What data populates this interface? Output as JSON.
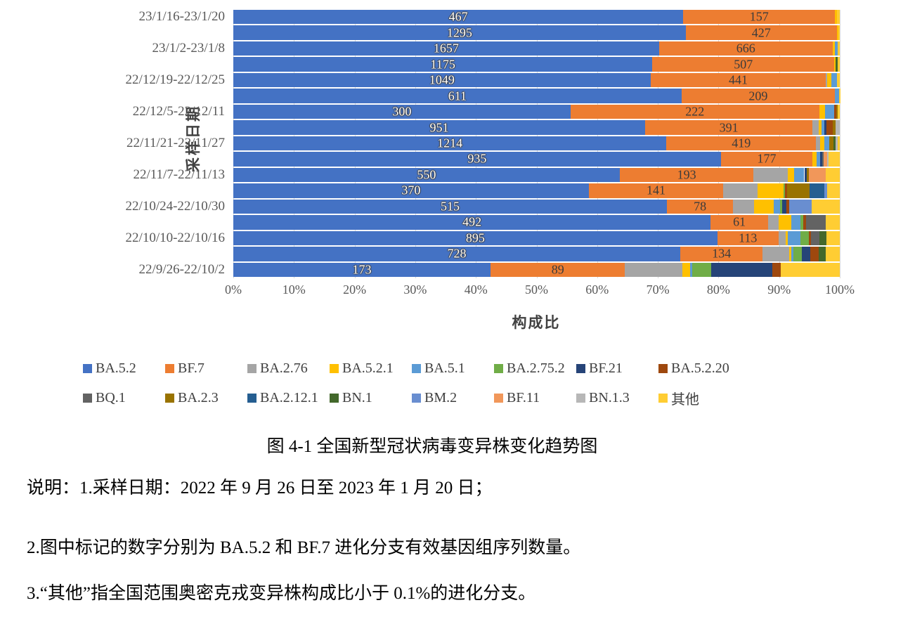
{
  "colors": {
    "BA.5.2": "#4472C4",
    "BF.7": "#ED7D31",
    "BA.2.76": "#A5A5A5",
    "BA.5.2.1": "#FFC000",
    "BA.5.1": "#5B9BD5",
    "BA.2.75.2": "#70AD47",
    "BF.21": "#264478",
    "BA.5.2.20": "#9E480E",
    "BQ.1": "#636363",
    "BA.2.3": "#997300",
    "BA.2.12.1": "#255E91",
    "BN.1": "#43682B",
    "BM.2": "#698ED0",
    "BF.11": "#F1975A",
    "BN.1.3": "#B7B7B7",
    "其他": "#FFCD33"
  },
  "chart_data": {
    "type": "bar",
    "stacked": true,
    "orientation": "horizontal",
    "xlabel": "构成比",
    "ylabel": "采样日期",
    "xlim": [
      0,
      100
    ],
    "grid": true,
    "x_ticks": [
      "0%",
      "10%",
      "20%",
      "30%",
      "40%",
      "50%",
      "60%",
      "70%",
      "80%",
      "90%",
      "100%"
    ],
    "series_names": [
      "BA.5.2",
      "BF.7",
      "BA.2.76",
      "BA.5.2.1",
      "BA.5.1",
      "BA.2.75.2",
      "BF.21",
      "BA.5.2.20",
      "BQ.1",
      "BA.2.3",
      "BA.2.12.1",
      "BN.1",
      "BM.2",
      "BF.11",
      "BN.1.3",
      "其他"
    ],
    "value_labels_note": "numbers shown = BA.5.2 and BF.7 sequence counts",
    "rows": [
      {
        "label": "23/1/16-23/1/20",
        "ba52": "467",
        "bf7": "157",
        "segments": [
          [
            "BA.5.2",
            74.2
          ],
          [
            "BF.7",
            25.0
          ],
          [
            "BA.5.2.1",
            0.35
          ],
          [
            "其他",
            0.45
          ]
        ]
      },
      {
        "label": "",
        "ba52": "1295",
        "bf7": "427",
        "segments": [
          [
            "BA.5.2",
            74.6
          ],
          [
            "BF.7",
            24.9
          ],
          [
            "BA.5.2.1",
            0.25
          ],
          [
            "其他",
            0.25
          ]
        ]
      },
      {
        "label": "23/1/2-23/1/8",
        "ba52": "1657",
        "bf7": "666",
        "segments": [
          [
            "BA.5.2",
            70.2
          ],
          [
            "BF.7",
            28.6
          ],
          [
            "BA.5.2.1",
            0.35
          ],
          [
            "BA.5.1",
            0.5
          ],
          [
            "其他",
            0.35
          ]
        ]
      },
      {
        "label": "",
        "ba52": "1175",
        "bf7": "507",
        "segments": [
          [
            "BA.5.2",
            69.1
          ],
          [
            "BF.7",
            30.0
          ],
          [
            "BA.5.2.1",
            0.2
          ],
          [
            "BN.1",
            0.3
          ],
          [
            "其他",
            0.4
          ]
        ]
      },
      {
        "label": "22/12/19-22/12/25",
        "ba52": "1049",
        "bf7": "441",
        "segments": [
          [
            "BA.5.2",
            68.8
          ],
          [
            "BF.7",
            28.9
          ],
          [
            "BA.2.76",
            0.25
          ],
          [
            "BA.5.2.1",
            0.7
          ],
          [
            "BA.5.1",
            0.9
          ],
          [
            "其他",
            0.45
          ]
        ]
      },
      {
        "label": "",
        "ba52": "611",
        "bf7": "209",
        "segments": [
          [
            "BA.5.2",
            73.9
          ],
          [
            "BF.7",
            25.3
          ],
          [
            "BA.5.1",
            0.7
          ],
          [
            "其他",
            0.1
          ]
        ]
      },
      {
        "label": "22/12/5-22/12/11",
        "ba52": "300",
        "bf7": "222",
        "segments": [
          [
            "BA.5.2",
            55.6
          ],
          [
            "BF.7",
            41.0
          ],
          [
            "BA.5.2.1",
            0.95
          ],
          [
            "BA.5.1",
            1.5
          ],
          [
            "BA.5.2.20",
            0.35
          ],
          [
            "BA.2.3",
            0.25
          ],
          [
            "其他",
            0.35
          ]
        ]
      },
      {
        "label": "",
        "ba52": "951",
        "bf7": "391",
        "segments": [
          [
            "BA.5.2",
            67.9
          ],
          [
            "BF.7",
            27.6
          ],
          [
            "BA.2.76",
            1.05
          ],
          [
            "BA.5.2.1",
            0.45
          ],
          [
            "BA.5.1",
            0.45
          ],
          [
            "BF.21",
            0.35
          ],
          [
            "BA.5.2.20",
            1.05
          ],
          [
            "BA.2.3",
            0.45
          ],
          [
            "BN.1.3",
            0.7
          ]
        ]
      },
      {
        "label": "22/11/21-22/11/27",
        "ba52": "1214",
        "bf7": "419",
        "segments": [
          [
            "BA.5.2",
            71.4
          ],
          [
            "BF.7",
            24.7
          ],
          [
            "BA.2.76",
            0.7
          ],
          [
            "BA.5.2.1",
            0.6
          ],
          [
            "BA.5.1",
            0.9
          ],
          [
            "BA.2.3",
            0.6
          ],
          [
            "BN.1",
            0.35
          ],
          [
            "BN.1.3",
            0.4
          ],
          [
            "其他",
            0.35
          ]
        ]
      },
      {
        "label": "",
        "ba52": "935",
        "bf7": "177",
        "segments": [
          [
            "BA.5.2",
            80.4
          ],
          [
            "BF.7",
            15.1
          ],
          [
            "BA.5.2.1",
            0.7
          ],
          [
            "BA.5.1",
            0.6
          ],
          [
            "BF.21",
            0.25
          ],
          [
            "BQ.1",
            0.25
          ],
          [
            "BF.11",
            0.6
          ],
          [
            "BN.1.3",
            0.2
          ],
          [
            "其他",
            1.9
          ]
        ]
      },
      {
        "label": "22/11/7-22/11/13",
        "ba52": "550",
        "bf7": "193",
        "segments": [
          [
            "BA.5.2",
            63.7
          ],
          [
            "BF.7",
            22.1
          ],
          [
            "BA.2.76",
            5.6
          ],
          [
            "BA.5.2.1",
            1.05
          ],
          [
            "BA.5.1",
            1.7
          ],
          [
            "BF.21",
            0.35
          ],
          [
            "BA.2.3",
            0.45
          ],
          [
            "BF.11",
            2.7
          ],
          [
            "其他",
            2.35
          ]
        ]
      },
      {
        "label": "",
        "ba52": "370",
        "bf7": "141",
        "segments": [
          [
            "BA.5.2",
            58.6
          ],
          [
            "BF.7",
            22.2
          ],
          [
            "BA.2.76",
            5.7
          ],
          [
            "BA.5.2.1",
            4.2
          ],
          [
            "BA.2.75.2",
            0.25
          ],
          [
            "BA.5.2.20",
            0.35
          ],
          [
            "BA.2.3",
            3.7
          ],
          [
            "BA.2.12.1",
            2.4
          ],
          [
            "BM.2",
            0.5
          ],
          [
            "其他",
            2.1
          ]
        ]
      },
      {
        "label": "22/10/24-22/10/30",
        "ba52": "515",
        "bf7": "78",
        "segments": [
          [
            "BA.5.2",
            71.5
          ],
          [
            "BF.7",
            10.9
          ],
          [
            "BA.2.76",
            3.5
          ],
          [
            "BA.5.2.1",
            3.2
          ],
          [
            "BA.5.1",
            1.05
          ],
          [
            "BA.2.75.2",
            0.35
          ],
          [
            "BF.21",
            0.7
          ],
          [
            "BA.5.2.20",
            0.45
          ],
          [
            "BM.2",
            3.7
          ],
          [
            "其他",
            4.65
          ]
        ]
      },
      {
        "label": "",
        "ba52": "492",
        "bf7": "61",
        "segments": [
          [
            "BA.5.2",
            78.7
          ],
          [
            "BF.7",
            9.5
          ],
          [
            "BA.2.76",
            1.7
          ],
          [
            "BA.5.2.1",
            2.1
          ],
          [
            "BA.5.1",
            1.5
          ],
          [
            "BA.2.75.2",
            0.45
          ],
          [
            "BA.5.2.20",
            0.45
          ],
          [
            "BQ.1",
            3.3
          ],
          [
            "其他",
            2.3
          ]
        ]
      },
      {
        "label": "22/10/10-22/10/16",
        "ba52": "895",
        "bf7": "113",
        "segments": [
          [
            "BA.5.2",
            79.8
          ],
          [
            "BF.7",
            10.1
          ],
          [
            "BA.2.76",
            1.15
          ],
          [
            "BA.5.2.1",
            0.35
          ],
          [
            "BA.5.1",
            2.1
          ],
          [
            "BA.2.75.2",
            1.4
          ],
          [
            "BA.5.2.20",
            0.35
          ],
          [
            "BQ.1",
            1.4
          ],
          [
            "BN.1",
            1.15
          ],
          [
            "其他",
            2.2
          ]
        ]
      },
      {
        "label": "",
        "ba52": "728",
        "bf7": "134",
        "segments": [
          [
            "BA.5.2",
            73.7
          ],
          [
            "BF.7",
            13.6
          ],
          [
            "BA.2.76",
            4.4
          ],
          [
            "BA.5.2.1",
            0.35
          ],
          [
            "BA.5.1",
            0.35
          ],
          [
            "BA.2.75.2",
            1.3
          ],
          [
            "BF.21",
            1.4
          ],
          [
            "BA.5.2.20",
            1.4
          ],
          [
            "BN.1",
            1.15
          ],
          [
            "其他",
            2.35
          ]
        ]
      },
      {
        "label": "22/9/26-22/10/2",
        "ba52": "173",
        "bf7": "89",
        "segments": [
          [
            "BA.5.2",
            42.4
          ],
          [
            "BF.7",
            22.2
          ],
          [
            "BA.2.76",
            9.4
          ],
          [
            "BA.5.2.1",
            1.3
          ],
          [
            "BA.5.1",
            0.35
          ],
          [
            "BA.2.75.2",
            3.2
          ],
          [
            "BF.21",
            10.0
          ],
          [
            "BA.5.2.20",
            1.4
          ],
          [
            "其他",
            9.75
          ]
        ]
      }
    ]
  },
  "legend": {
    "rows": [
      [
        "BA.5.2",
        "BF.7",
        "BA.2.76",
        "BA.5.2.1",
        "BA.5.1",
        "BA.2.75.2",
        "BF.21",
        "BA.5.2.20"
      ],
      [
        "BQ.1",
        "BA.2.3",
        "BA.2.12.1",
        "BN.1",
        "BM.2",
        "BF.11",
        "BN.1.3",
        "其他"
      ]
    ]
  },
  "axis": {
    "x_title": "构成比",
    "y_title": "采样日期"
  },
  "caption": "图 4-1 全国新型冠状病毒变异株变化趋势图",
  "notes": [
    "说明：1.采样日期：2022 年 9 月 26 日至 2023 年 1 月 20 日；",
    "2.图中标记的数字分别为 BA.5.2 和 BF.7 进化分支有效基因组序列数量。",
    "3.“其他”指全国范围奥密克戎变异株构成比小于 0.1%的进化分支。"
  ]
}
